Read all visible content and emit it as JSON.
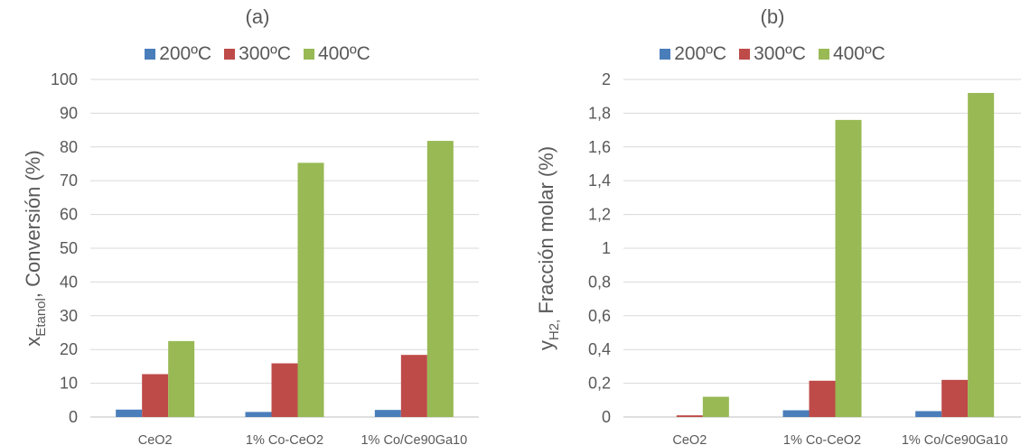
{
  "colors": {
    "200": "#4a7ebb",
    "300": "#be4b48",
    "400": "#98b954",
    "grid": "#d9d9d9",
    "axis": "#bfbfbf"
  },
  "chart_data": [
    {
      "type": "bar",
      "title": "(a)",
      "ylabel_main": "x",
      "ylabel_sub": "Etanol",
      "ylabel_rest": ", Conversión (%)",
      "categories": [
        "CeO2",
        "1% Co-CeO2",
        "1% Co/Ce90Ga10"
      ],
      "series": [
        {
          "name": "200ºC",
          "values": [
            2.2,
            1.5,
            2.1
          ]
        },
        {
          "name": "300ºC",
          "values": [
            12.7,
            15.9,
            18.4
          ]
        },
        {
          "name": "400ºC",
          "values": [
            22.5,
            75.3,
            81.8
          ]
        }
      ],
      "ylim": [
        0,
        100
      ],
      "yticks": [
        "0",
        "10",
        "20",
        "30",
        "40",
        "50",
        "60",
        "70",
        "80",
        "90",
        "100"
      ],
      "legend": "top",
      "grid": true
    },
    {
      "type": "bar",
      "title": "(b)",
      "ylabel_main": "y",
      "ylabel_sub": "H2,",
      "ylabel_rest": " Fracción molar (%)",
      "categories": [
        "CeO2",
        "1% Co-CeO2",
        "1% Co/Ce90Ga10"
      ],
      "series": [
        {
          "name": "200ºC",
          "values": [
            0.0,
            0.04,
            0.035
          ]
        },
        {
          "name": "300ºC",
          "values": [
            0.01,
            0.215,
            0.22
          ]
        },
        {
          "name": "400ºC",
          "values": [
            0.12,
            1.76,
            1.92
          ]
        }
      ],
      "ylim": [
        0,
        2
      ],
      "yticks": [
        "0",
        "0,2",
        "0,4",
        "0,6",
        "0,8",
        "1",
        "1,2",
        "1,4",
        "1,6",
        "1,8",
        "2"
      ],
      "legend": "top",
      "grid": true
    }
  ]
}
